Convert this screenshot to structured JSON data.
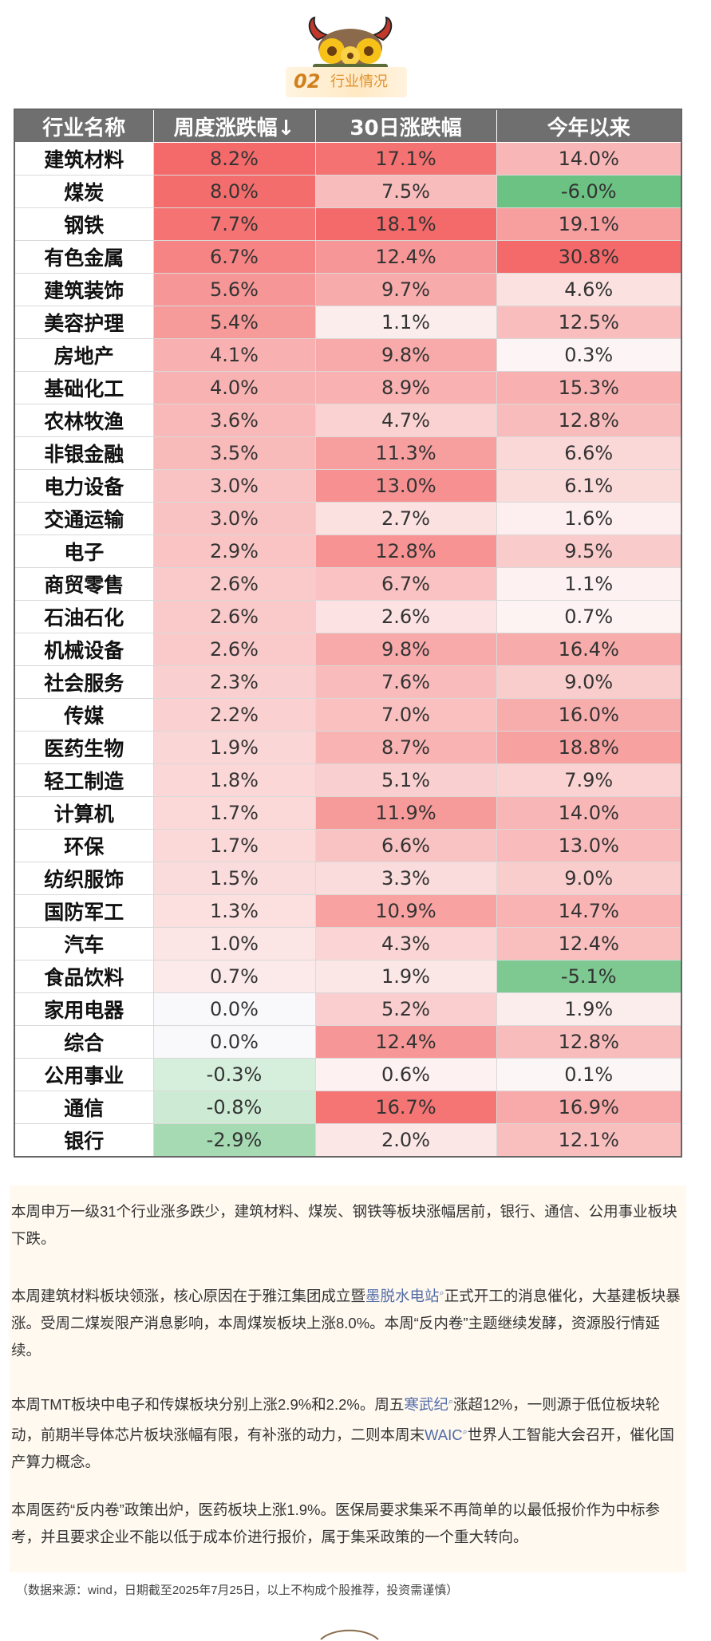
{
  "section": {
    "number": "02",
    "title": "行业情况"
  },
  "colors": {
    "up_strong": "#f46a6a",
    "up_light": "#fdeaea",
    "down_strong": "#63be7b",
    "down_light": "#d5eedb",
    "header_bg": "#6f6f6f"
  },
  "table": {
    "headers": [
      "行业名称",
      "周度涨跌幅↓",
      "30日涨跌幅",
      "今年以来"
    ],
    "rows": [
      [
        "建筑材料",
        "8.2%",
        "17.1%",
        "14.0%"
      ],
      [
        "煤炭",
        "8.0%",
        "7.5%",
        "-6.0%"
      ],
      [
        "钢铁",
        "7.7%",
        "18.1%",
        "19.1%"
      ],
      [
        "有色金属",
        "6.7%",
        "12.4%",
        "30.8%"
      ],
      [
        "建筑装饰",
        "5.6%",
        "9.7%",
        "4.6%"
      ],
      [
        "美容护理",
        "5.4%",
        "1.1%",
        "12.5%"
      ],
      [
        "房地产",
        "4.1%",
        "9.8%",
        "0.3%"
      ],
      [
        "基础化工",
        "4.0%",
        "8.9%",
        "15.3%"
      ],
      [
        "农林牧渔",
        "3.6%",
        "4.7%",
        "12.8%"
      ],
      [
        "非银金融",
        "3.5%",
        "11.3%",
        "6.6%"
      ],
      [
        "电力设备",
        "3.0%",
        "13.0%",
        "6.1%"
      ],
      [
        "交通运输",
        "3.0%",
        "2.7%",
        "1.6%"
      ],
      [
        "电子",
        "2.9%",
        "12.8%",
        "9.5%"
      ],
      [
        "商贸零售",
        "2.6%",
        "6.7%",
        "1.1%"
      ],
      [
        "石油石化",
        "2.6%",
        "2.6%",
        "0.7%"
      ],
      [
        "机械设备",
        "2.6%",
        "9.8%",
        "16.4%"
      ],
      [
        "社会服务",
        "2.3%",
        "7.6%",
        "9.0%"
      ],
      [
        "传媒",
        "2.2%",
        "7.0%",
        "16.0%"
      ],
      [
        "医药生物",
        "1.9%",
        "8.7%",
        "18.8%"
      ],
      [
        "轻工制造",
        "1.8%",
        "5.1%",
        "7.9%"
      ],
      [
        "计算机",
        "1.7%",
        "11.9%",
        "14.0%"
      ],
      [
        "环保",
        "1.7%",
        "6.6%",
        "13.0%"
      ],
      [
        "纺织服饰",
        "1.5%",
        "3.3%",
        "9.0%"
      ],
      [
        "国防军工",
        "1.3%",
        "10.9%",
        "14.7%"
      ],
      [
        "汽车",
        "1.0%",
        "4.3%",
        "12.4%"
      ],
      [
        "食品饮料",
        "0.7%",
        "1.9%",
        "-5.1%"
      ],
      [
        "家用电器",
        "0.0%",
        "5.2%",
        "1.9%"
      ],
      [
        "综合",
        "0.0%",
        "12.4%",
        "12.8%"
      ],
      [
        "公用事业",
        "-0.3%",
        "0.6%",
        "0.1%"
      ],
      [
        "通信",
        "-0.8%",
        "16.7%",
        "16.9%"
      ],
      [
        "银行",
        "-2.9%",
        "2.0%",
        "12.1%"
      ]
    ]
  },
  "article": {
    "p1": "本周申万一级31个行业涨多跌少，建筑材料、煤炭、钢铁等板块涨幅居前，银行、通信、公用事业板块下跌。",
    "p2_a": "本周建筑材料板块领涨，核心原因在于雅江集团成立暨",
    "p2_link": "墨脱水电站",
    "p2_b": "正式开工的消息催化，大基建板块暴涨。受周二煤炭限产消息影响，本周煤炭板块上涨8.0%。本周“反内卷”主题继续发酵，资源股行情延续。",
    "p3_a": "本周TMT板块中电子和传媒板块分别上涨2.9%和2.2%。周五",
    "p3_link1": "寒武纪",
    "p3_b": "涨超12%，一则源于低位板块轮动，前期半导体芯片板块涨幅有限，有补涨的动力，二则本周末",
    "p3_link2": "WAIC",
    "p3_c": "世界人工智能大会召开，催化国产算力概念。",
    "p4": "本周医药“反内卷”政策出炉，医药板块上涨1.9%。医保局要求集采不再简单的以最低报价作为中标参考，并且要求企业不能以低于成本价进行报价，属于集采政策的一个重大转向。"
  },
  "footnote": "（数据来源：wind，日期截至2025年7月25日，以上不构成个股推荐，投资需谨慎）"
}
